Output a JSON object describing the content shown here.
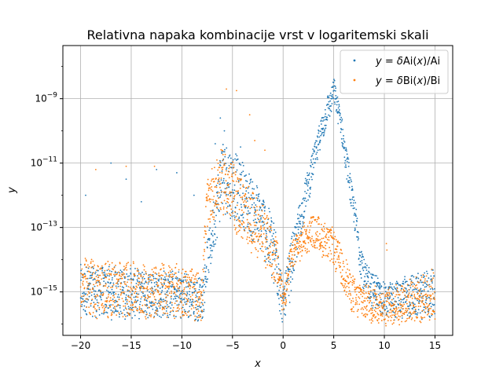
{
  "chart_data": {
    "type": "scatter",
    "title": "Relativna napaka kombinacije vrst v logaritemski skali",
    "xlabel": "x",
    "ylabel": "y",
    "xlim": [
      -21.75,
      16.75
    ],
    "ylim_log10": [
      -16.35,
      -7.35
    ],
    "yscale": "log",
    "grid": true,
    "legend_position": "upper right",
    "x_ticks": [
      {
        "value": -20,
        "label": "−20"
      },
      {
        "value": -15,
        "label": "−15"
      },
      {
        "value": -10,
        "label": "−10"
      },
      {
        "value": -5,
        "label": "−5"
      },
      {
        "value": 0,
        "label": "0"
      },
      {
        "value": 5,
        "label": "5"
      },
      {
        "value": 10,
        "label": "10"
      },
      {
        "value": 15,
        "label": "15"
      }
    ],
    "y_ticks": [
      {
        "exp": -15,
        "base": "10",
        "sup": "−15"
      },
      {
        "exp": -13,
        "base": "10",
        "sup": "−13"
      },
      {
        "exp": -11,
        "base": "10",
        "sup": "−11"
      },
      {
        "exp": -9,
        "base": "10",
        "sup": "−9"
      }
    ],
    "series": [
      {
        "name": "y = δAi(x)/Ai",
        "legend": {
          "lhs": "y",
          "eq": " = ",
          "delta": "δ",
          "fn": "Ai(",
          "var": "x",
          "rest": ")/Ai"
        },
        "color": "#1f77b4",
        "envelope": [
          {
            "x": -20,
            "low": -15.8,
            "high": -14.2
          },
          {
            "x": -10,
            "low": -15.8,
            "high": -14.4
          },
          {
            "x": -8,
            "low": -15.9,
            "high": -14.6
          },
          {
            "x": -7.5,
            "low": -14.8,
            "high": -13.5
          },
          {
            "x": -6,
            "low": -12.5,
            "high": -10.2
          },
          {
            "x": -4,
            "low": -13.0,
            "high": -11.0
          },
          {
            "x": -2,
            "low": -13.8,
            "high": -12.0
          },
          {
            "x": -0.5,
            "low": -15.5,
            "high": -13.0
          },
          {
            "x": 0,
            "low": -16.0,
            "high": -15.0
          },
          {
            "x": 0.5,
            "low": -15.6,
            "high": -13.8
          },
          {
            "x": 2,
            "low": -12.8,
            "high": -11.8
          },
          {
            "x": 4,
            "low": -10.2,
            "high": -9.3
          },
          {
            "x": 5,
            "low": -9.2,
            "high": -8.4
          },
          {
            "x": 5.5,
            "low": -9.8,
            "high": -9.0
          },
          {
            "x": 8,
            "low": -15.2,
            "high": -14.0
          },
          {
            "x": 10,
            "low": -15.8,
            "high": -14.8
          },
          {
            "x": 15,
            "low": -15.8,
            "high": -14.3
          }
        ],
        "outliers": [
          {
            "x": -17,
            "y": -11.0
          },
          {
            "x": -15.5,
            "y": -11.5
          },
          {
            "x": -12.5,
            "y": -11.2
          },
          {
            "x": -10.5,
            "y": -11.3
          },
          {
            "x": -19.5,
            "y": -12.0
          },
          {
            "x": -14,
            "y": -12.2
          },
          {
            "x": -6.2,
            "y": -9.6
          },
          {
            "x": -5.8,
            "y": -10.0
          },
          {
            "x": -6.7,
            "y": -10.4
          },
          {
            "x": -4.2,
            "y": -10.5
          },
          {
            "x": -8.8,
            "y": -12.0
          }
        ]
      },
      {
        "name": "y = δBi(x)/Bi",
        "legend": {
          "lhs": "y",
          "eq": " = ",
          "delta": "δ",
          "fn": "Bi(",
          "var": "x",
          "rest": ")/Bi"
        },
        "color": "#ff7f0e",
        "envelope": [
          {
            "x": -20,
            "low": -15.8,
            "high": -14.0
          },
          {
            "x": -10,
            "low": -15.8,
            "high": -14.2
          },
          {
            "x": -8,
            "low": -15.9,
            "high": -14.5
          },
          {
            "x": -7.5,
            "low": -13.0,
            "high": -11.5
          },
          {
            "x": -6,
            "low": -12.5,
            "high": -10.5
          },
          {
            "x": -4,
            "low": -13.5,
            "high": -11.5
          },
          {
            "x": -2,
            "low": -14.0,
            "high": -12.3
          },
          {
            "x": -0.5,
            "low": -15.0,
            "high": -13.5
          },
          {
            "x": 0,
            "low": -15.8,
            "high": -14.8
          },
          {
            "x": 1,
            "low": -14.2,
            "high": -13.3
          },
          {
            "x": 3,
            "low": -13.6,
            "high": -12.6
          },
          {
            "x": 5,
            "low": -14.2,
            "high": -13.1
          },
          {
            "x": 7,
            "low": -15.8,
            "high": -14.6
          },
          {
            "x": 10,
            "low": -16.0,
            "high": -15.0
          },
          {
            "x": 15,
            "low": -15.9,
            "high": -14.3
          }
        ],
        "outliers": [
          {
            "x": -15.5,
            "y": -11.1
          },
          {
            "x": -18.5,
            "y": -11.2
          },
          {
            "x": -12.7,
            "y": -11.1
          },
          {
            "x": -5.6,
            "y": -8.7
          },
          {
            "x": -4.6,
            "y": -8.75
          },
          {
            "x": -2.8,
            "y": -10.3
          },
          {
            "x": -3.3,
            "y": -9.5
          },
          {
            "x": -1.8,
            "y": -10.6
          },
          {
            "x": 10.2,
            "y": -13.5
          },
          {
            "x": 10.25,
            "y": -13.7
          },
          {
            "x": -7.2,
            "y": -12.2
          }
        ]
      }
    ]
  }
}
